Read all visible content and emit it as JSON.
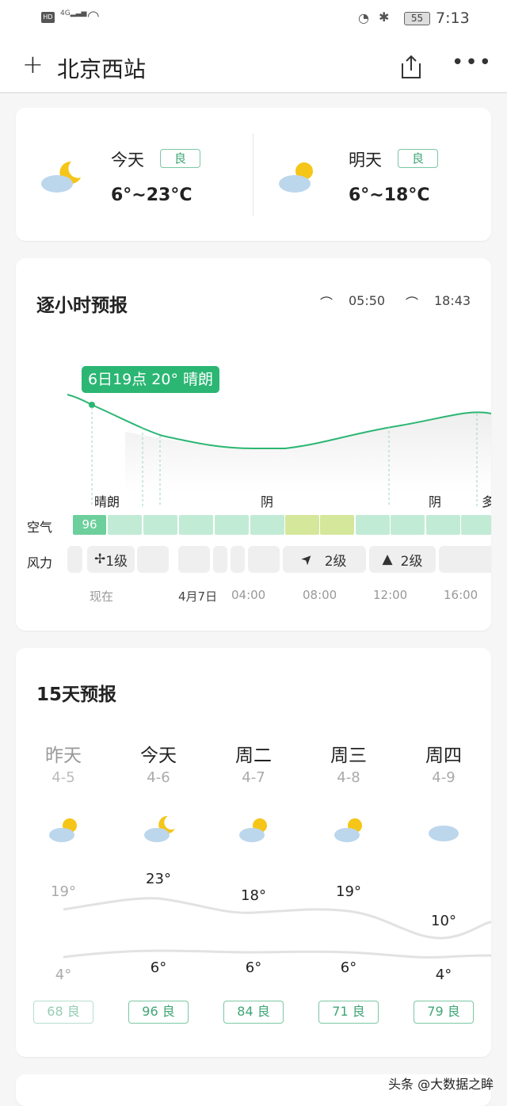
{
  "status": {
    "left_icons": [
      "hd-icon",
      "4g-signal-icon",
      "wifi-icon"
    ],
    "battery": "55",
    "time": "7:13"
  },
  "header": {
    "title": "北京西站"
  },
  "summary": {
    "today": {
      "label": "今天",
      "aqi": "良",
      "temp": "6°~23°C",
      "icon": "moon-cloud-icon"
    },
    "tomorrow": {
      "label": "明天",
      "aqi": "良",
      "temp": "6°~18°C",
      "icon": "sun-cloud-icon"
    }
  },
  "hourly": {
    "title": "逐小时预报",
    "sunrise": "05:50",
    "sunset": "18:43",
    "tooltip": "6日19点 20° 晴朗",
    "conditions": [
      "晴朗",
      "阴",
      "阴",
      "多"
    ],
    "air_label": "空气",
    "air_first": "96",
    "wind_label": "风力",
    "winds": [
      "1级",
      "2级",
      "2级"
    ],
    "ticks": [
      "现在",
      "4月7日",
      "04:00",
      "08:00",
      "12:00",
      "16:00"
    ],
    "colors": {
      "aqi_good_now": "#6ccf9c",
      "aqi_good": "#c2ebd6",
      "aqi_moderate": "#d4e79b",
      "line": "#2bb673"
    }
  },
  "daily": {
    "title": "15天预报",
    "days": [
      {
        "name": "昨天",
        "date": "4-5",
        "high": "19°",
        "low": "4°",
        "aqi": "68 良",
        "icon": "sun-cloud-icon"
      },
      {
        "name": "今天",
        "date": "4-6",
        "high": "23°",
        "low": "6°",
        "aqi": "96 良",
        "icon": "moon-cloud-icon"
      },
      {
        "name": "周二",
        "date": "4-7",
        "high": "18°",
        "low": "6°",
        "aqi": "84 良",
        "icon": "sun-cloud-icon"
      },
      {
        "name": "周三",
        "date": "4-8",
        "high": "19°",
        "low": "6°",
        "aqi": "71 良",
        "icon": "sun-cloud-icon"
      },
      {
        "name": "周四",
        "date": "4-9",
        "high": "10°",
        "low": "4°",
        "aqi": "79 良",
        "icon": "cloud-icon"
      }
    ]
  },
  "watermark": "头条 @大数据之眸"
}
